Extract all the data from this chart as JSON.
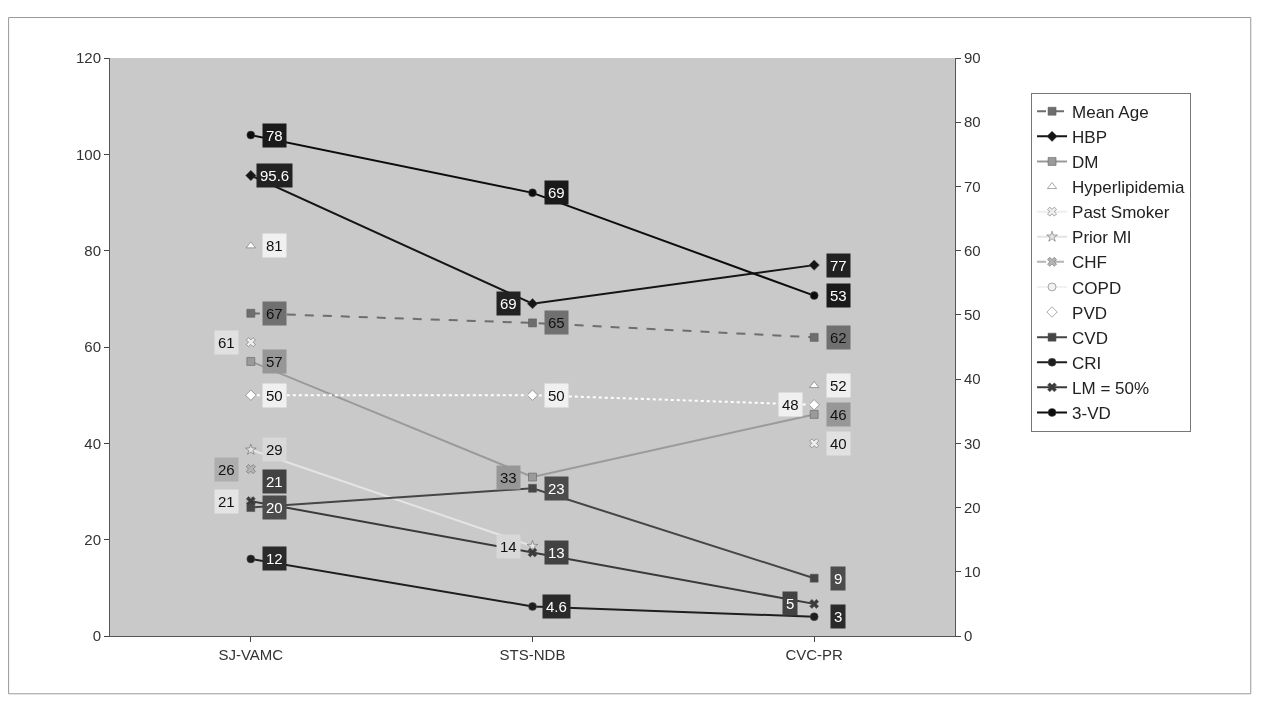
{
  "chart_data": {
    "type": "line",
    "categories": [
      "SJ-VAMC",
      "STS-NDB",
      "CVC-PR"
    ],
    "ylim": [
      0,
      120
    ],
    "yticks": [
      0,
      20,
      40,
      60,
      80,
      100,
      120
    ],
    "y2lim": [
      0,
      90
    ],
    "y2ticks": [
      0,
      10,
      20,
      30,
      40,
      50,
      60,
      70,
      80,
      90
    ],
    "grid": false,
    "legend": "right",
    "data_labels": true,
    "series": [
      {
        "name": "Mean Age",
        "color": "#6e6e6e",
        "values": [
          67,
          65,
          62
        ],
        "marker": "square",
        "line_style": "dashed"
      },
      {
        "name": "HBP",
        "color": "#151515",
        "values": [
          95.6,
          69,
          77
        ],
        "marker": "diamond",
        "line_style": "solid"
      },
      {
        "name": "DM",
        "color": "#9a9a9a",
        "values": [
          57,
          33,
          46
        ],
        "marker": "square",
        "line_style": "solid"
      },
      {
        "name": "Hyperlipidemia",
        "color": "#ffffff",
        "values": [
          81,
          null,
          52
        ],
        "marker": "triangle",
        "line_style": "solid"
      },
      {
        "name": "Past Smoker",
        "color": "#eeeeee",
        "values": [
          61,
          null,
          40
        ],
        "marker": "cross",
        "line_style": "solid"
      },
      {
        "name": "Prior MI",
        "color": "#e4e4e4",
        "values": [
          29,
          14,
          null
        ],
        "marker": "star",
        "line_style": "solid",
        "axis": "y2"
      },
      {
        "name": "CHF",
        "color": "#b4b4b4",
        "values": [
          26,
          null,
          null
        ],
        "marker": "cross",
        "line_style": "dashed",
        "axis": "y2"
      },
      {
        "name": "COPD",
        "color": "#f2f2f2",
        "values": [
          21,
          null,
          null
        ],
        "marker": "circle",
        "line_style": "solid",
        "axis": "y2"
      },
      {
        "name": "PVD",
        "color": "#ffffff",
        "values": [
          50,
          50,
          48
        ],
        "marker": "diamond",
        "line_style": "dotted"
      },
      {
        "name": "CVD",
        "color": "#454545",
        "values": [
          20,
          23,
          9
        ],
        "marker": "square",
        "line_style": "solid",
        "axis": "y2"
      },
      {
        "name": "CRI",
        "color": "#1e1e1e",
        "values": [
          12,
          4.6,
          3
        ],
        "marker": "circle",
        "line_style": "solid",
        "axis": "y2"
      },
      {
        "name": "LM = 50%",
        "color": "#3a3a3a",
        "values": [
          21,
          13,
          5
        ],
        "marker": "cross",
        "line_style": "solid",
        "axis": "y2"
      },
      {
        "name": "3-VD",
        "color": "#0c0c0c",
        "values": [
          78,
          69,
          53
        ],
        "marker": "circle",
        "line_style": "solid",
        "axis": "y2"
      }
    ]
  }
}
